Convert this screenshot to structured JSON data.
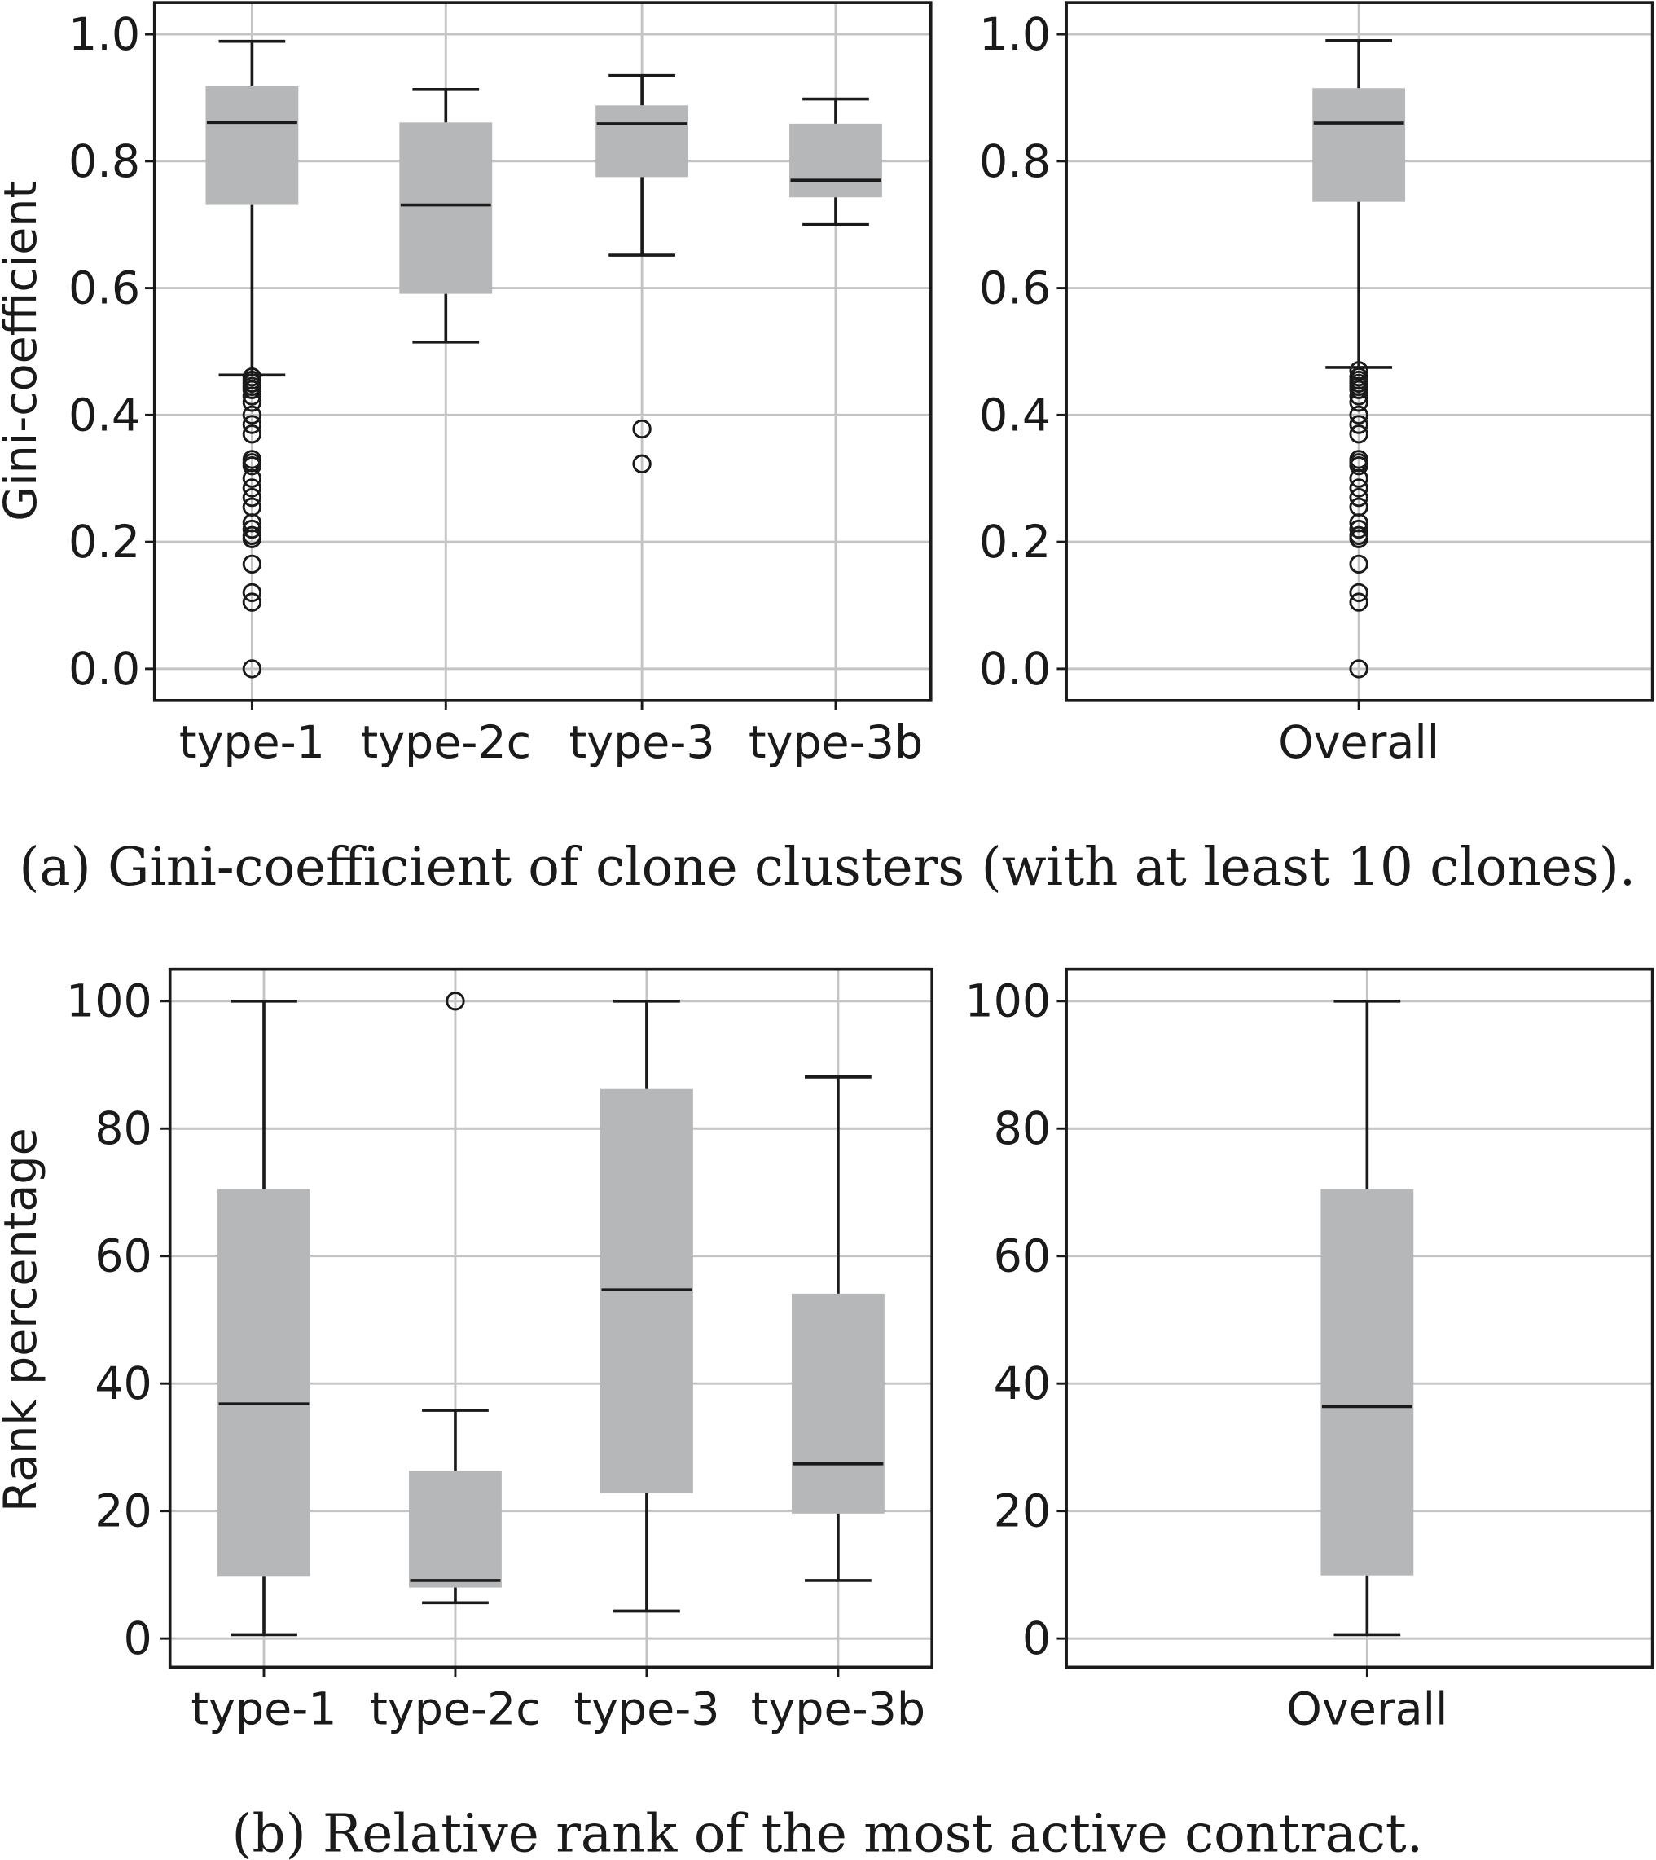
{
  "chart_data": [
    {
      "type": "box",
      "panel": "a-left",
      "ylabel": "Gini-coefficient",
      "ylim": [
        -0.05,
        1.05
      ],
      "yticks": [
        "0.0",
        "0.2",
        "0.4",
        "0.6",
        "0.8",
        "1.0"
      ],
      "grid": true,
      "categories": [
        "type-1",
        "type-2c",
        "type-3",
        "type-3b"
      ],
      "boxes": [
        {
          "whislo": 0.463,
          "q1": 0.731,
          "med": 0.861,
          "q3": 0.918,
          "whishi": 0.989,
          "fliers": [
            0.46,
            0.455,
            0.45,
            0.445,
            0.44,
            0.43,
            0.42,
            0.4,
            0.385,
            0.37,
            0.33,
            0.325,
            0.32,
            0.3,
            0.285,
            0.27,
            0.255,
            0.23,
            0.22,
            0.21,
            0.205,
            0.165,
            0.12,
            0.105,
            0.0
          ]
        },
        {
          "whislo": 0.515,
          "q1": 0.591,
          "med": 0.731,
          "q3": 0.861,
          "whishi": 0.913,
          "fliers": []
        },
        {
          "whislo": 0.652,
          "q1": 0.775,
          "med": 0.859,
          "q3": 0.888,
          "whishi": 0.935,
          "fliers": [
            0.378,
            0.323
          ]
        },
        {
          "whislo": 0.7,
          "q1": 0.743,
          "med": 0.77,
          "q3": 0.859,
          "whishi": 0.898,
          "fliers": []
        }
      ]
    },
    {
      "type": "box",
      "panel": "a-right",
      "ylim": [
        -0.05,
        1.05
      ],
      "yticks": [
        "0.0",
        "0.2",
        "0.4",
        "0.6",
        "0.8",
        "1.0"
      ],
      "grid": true,
      "categories": [
        "Overall"
      ],
      "boxes": [
        {
          "whislo": 0.475,
          "q1": 0.736,
          "med": 0.86,
          "q3": 0.915,
          "whishi": 0.99,
          "fliers": [
            0.47,
            0.46,
            0.455,
            0.45,
            0.445,
            0.44,
            0.43,
            0.42,
            0.4,
            0.385,
            0.37,
            0.33,
            0.325,
            0.32,
            0.3,
            0.285,
            0.27,
            0.255,
            0.23,
            0.22,
            0.21,
            0.205,
            0.165,
            0.12,
            0.105,
            0.0
          ]
        }
      ]
    },
    {
      "type": "box",
      "panel": "b-left",
      "ylabel": "Rank percentage",
      "ylim": [
        -4.5,
        105
      ],
      "yticks": [
        "0",
        "20",
        "40",
        "60",
        "80",
        "100"
      ],
      "grid": true,
      "categories": [
        "type-1",
        "type-2c",
        "type-3",
        "type-3b"
      ],
      "boxes": [
        {
          "whislo": 0.6,
          "q1": 9.7,
          "med": 36.8,
          "q3": 70.5,
          "whishi": 100,
          "fliers": []
        },
        {
          "whislo": 5.6,
          "q1": 8.0,
          "med": 9.1,
          "q3": 26.3,
          "whishi": 35.8,
          "fliers": [
            100
          ]
        },
        {
          "whislo": 4.3,
          "q1": 22.8,
          "med": 54.7,
          "q3": 86.2,
          "whishi": 100,
          "fliers": []
        },
        {
          "whislo": 9.1,
          "q1": 19.6,
          "med": 27.4,
          "q3": 54.1,
          "whishi": 88.1,
          "fliers": []
        }
      ]
    },
    {
      "type": "box",
      "panel": "b-right",
      "ylim": [
        -4.5,
        105
      ],
      "yticks": [
        "0",
        "20",
        "40",
        "60",
        "80",
        "100"
      ],
      "grid": true,
      "categories": [
        "Overall"
      ],
      "boxes": [
        {
          "whislo": 0.6,
          "q1": 9.9,
          "med": 36.4,
          "q3": 70.5,
          "whishi": 100,
          "fliers": []
        }
      ]
    }
  ],
  "captions": {
    "a": "(a) Gini-coefficient of clone clusters (with at least 10 clones).",
    "b": "(b) Relative rank of the most active contract."
  },
  "colors": {
    "box": "#b6b7b9",
    "line": "#1a1a1a",
    "grid": "#c4c4c4"
  }
}
